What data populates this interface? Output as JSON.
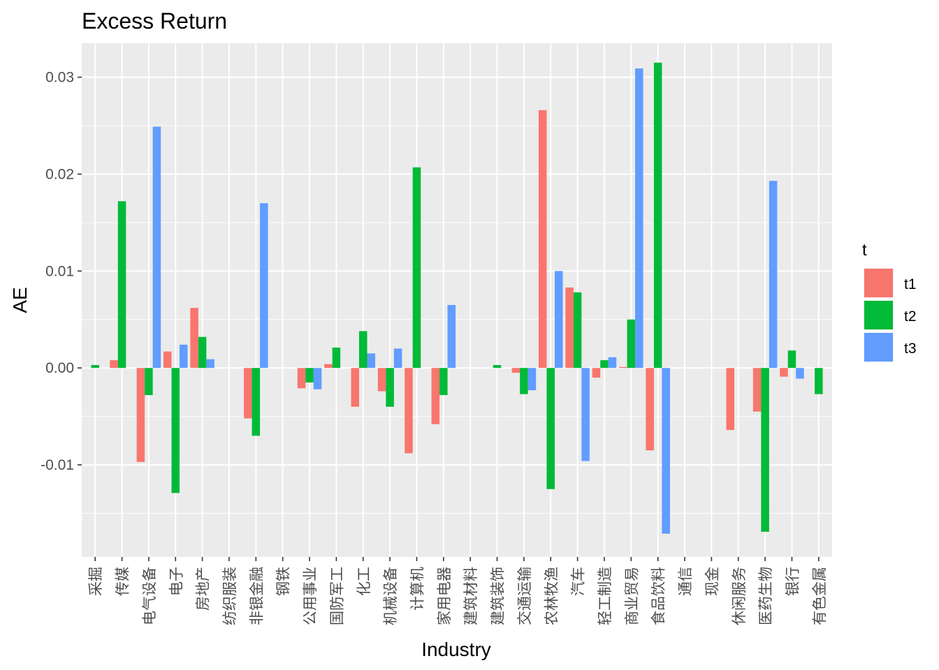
{
  "chart_data": {
    "type": "bar",
    "title": "Excess Return",
    "xlabel": "Industry",
    "ylabel": "AE",
    "ylim": [
      -0.0195,
      0.0335
    ],
    "yticks": [
      -0.01,
      0.0,
      0.01,
      0.02,
      0.03
    ],
    "ytick_labels": [
      "-0.01",
      "0.00",
      "0.01",
      "0.02",
      "0.03"
    ],
    "grid": true,
    "legend": {
      "title": "t",
      "position": "right"
    },
    "categories": [
      "采掘",
      "传媒",
      "电气设备",
      "电子",
      "房地产",
      "纺织服装",
      "非银金融",
      "钢铁",
      "公用事业",
      "国防军工",
      "化工",
      "机械设备",
      "计算机",
      "家用电器",
      "建筑材料",
      "建筑装饰",
      "交通运输",
      "农林牧渔",
      "汽车",
      "轻工制造",
      "商业贸易",
      "食品饮料",
      "通信",
      "现金",
      "休闲服务",
      "医药生物",
      "银行",
      "有色金属"
    ],
    "series": [
      {
        "name": "t1",
        "color": "#F8766D",
        "values": [
          0,
          0.0008,
          -0.0097,
          0.0017,
          0.0062,
          0,
          -0.0052,
          0,
          -0.0021,
          0.0004,
          -0.004,
          -0.0024,
          -0.0088,
          -0.0058,
          0,
          0,
          -0.0005,
          0.0266,
          0.0083,
          -0.001,
          0.0001,
          -0.0085,
          0,
          0,
          -0.0064,
          -0.0045,
          -0.0009,
          0
        ]
      },
      {
        "name": "t2",
        "color": "#00BA38",
        "values": [
          0.0003,
          0.0172,
          -0.0028,
          -0.0129,
          0.0032,
          0,
          -0.007,
          0,
          -0.0015,
          0.0021,
          0.0038,
          -0.004,
          0.0207,
          -0.0028,
          0,
          0.0003,
          -0.0027,
          -0.0125,
          0.0078,
          0.0008,
          0.005,
          0.0315,
          0,
          0,
          0,
          -0.0169,
          0.0018,
          -0.0027
        ]
      },
      {
        "name": "t3",
        "color": "#619CFF",
        "values": [
          0,
          0,
          0.0249,
          0.0024,
          0.0009,
          0,
          0.017,
          0,
          -0.0022,
          0,
          0.0015,
          0.002,
          0,
          0.0065,
          0,
          0,
          -0.0023,
          0.01,
          -0.0096,
          0.0011,
          0.0309,
          -0.0171,
          0,
          0,
          0,
          0.0193,
          -0.0011,
          0
        ]
      }
    ]
  }
}
